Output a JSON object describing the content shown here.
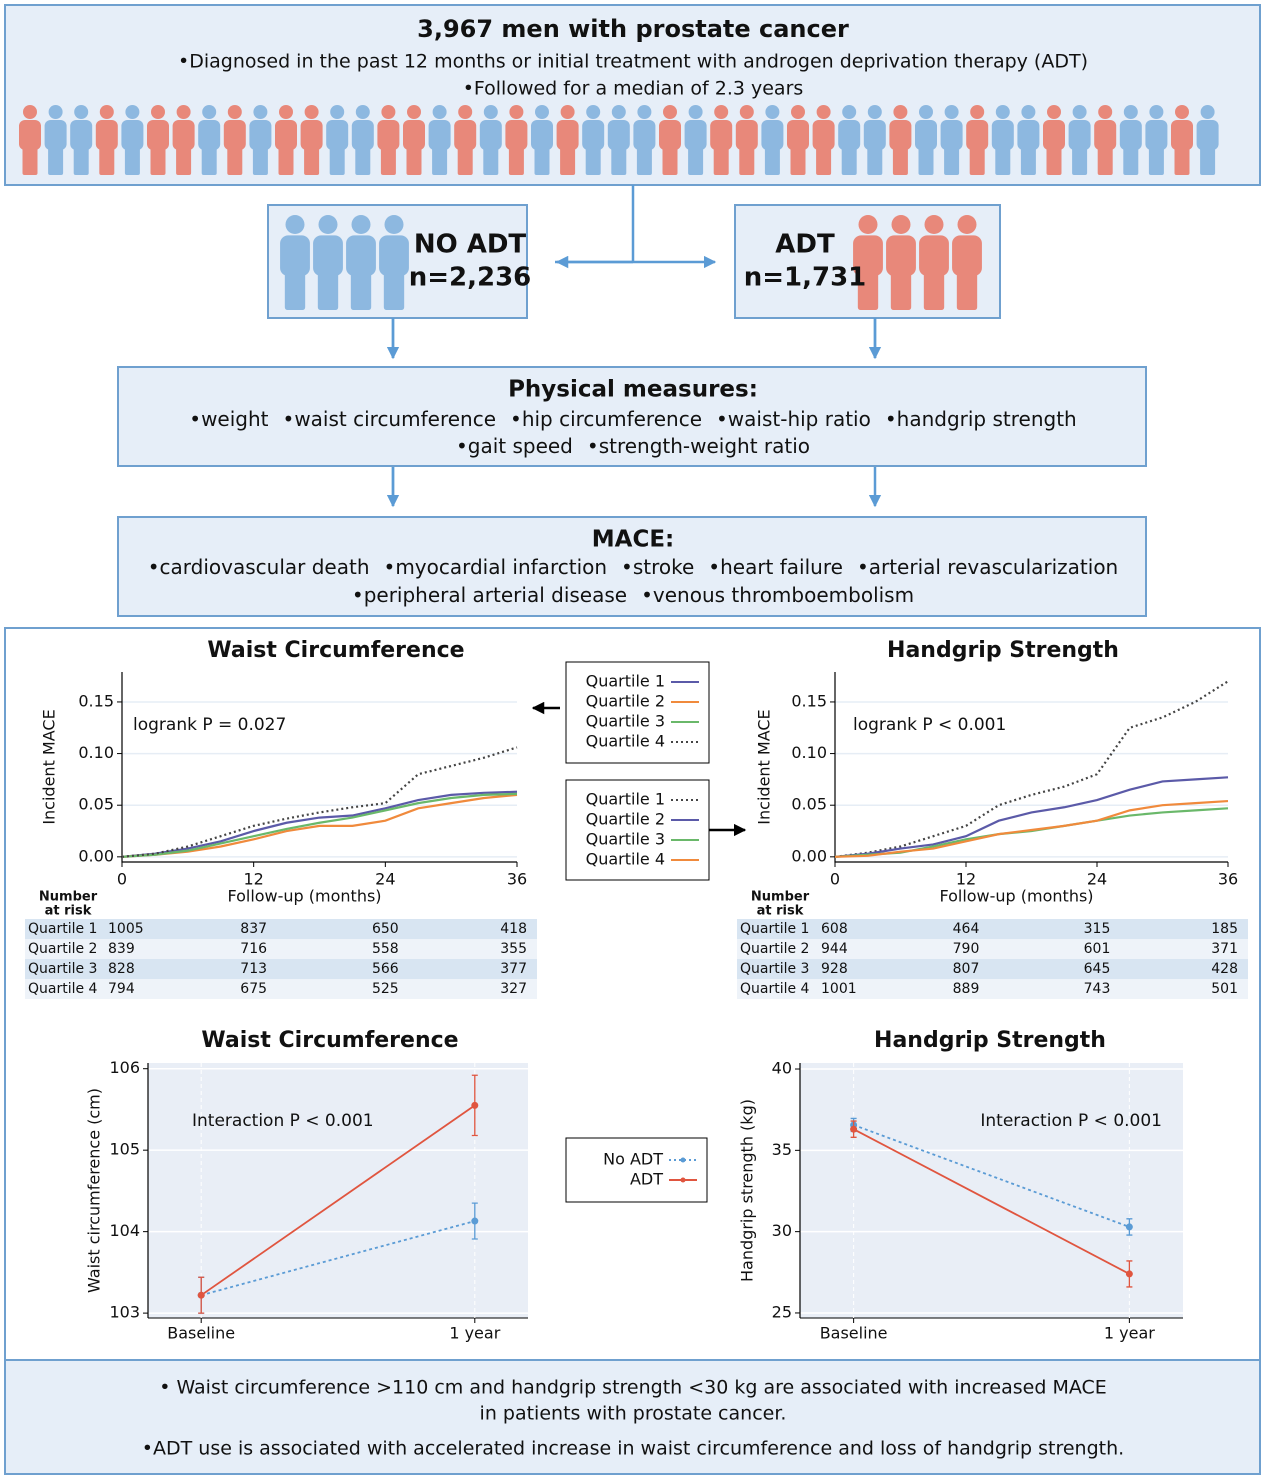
{
  "header": {
    "title": "3,967 men with prostate cancer",
    "bullets": [
      "•Diagnosed in the past 12 months or initial treatment with androgen deprivation therapy (ADT)",
      "•Followed for a median of 2.3  years"
    ]
  },
  "groups": [
    {
      "label": "NO ADT",
      "n": "n=2,236"
    },
    {
      "label": "ADT",
      "n": "n=1,731"
    }
  ],
  "physical": {
    "title": "Physical measures:",
    "lines": [
      [
        "•weight",
        "•waist circumference",
        "•hip circumference",
        "•waist-hip ratio",
        "•handgrip strength"
      ],
      [
        "•gait speed",
        "•strength-weight ratio"
      ]
    ]
  },
  "mace": {
    "title": "MACE:",
    "lines": [
      [
        "•cardiovascular death",
        "•myocardial infarction",
        "•stroke",
        "•heart failure",
        "•arterial revascularization"
      ],
      [
        "•peripheral arterial disease",
        "•venous thromboembolism"
      ]
    ]
  },
  "chart_data": [
    {
      "type": "line",
      "title": "Waist Circumference",
      "x_label": "Follow-up (months)",
      "y_label": "Incident MACE",
      "annotation": "logrank P = 0.027",
      "x": [
        0,
        3,
        6,
        9,
        12,
        15,
        18,
        21,
        24,
        27,
        30,
        33,
        36
      ],
      "series": [
        {
          "name": "Quartile 1",
          "color": "#5b5aa8",
          "values": [
            0,
            0.003,
            0.008,
            0.015,
            0.025,
            0.033,
            0.038,
            0.04,
            0.047,
            0.055,
            0.06,
            0.062,
            0.063
          ]
        },
        {
          "name": "Quartile 2",
          "color": "#f08a3c",
          "values": [
            0,
            0.002,
            0.005,
            0.01,
            0.017,
            0.025,
            0.03,
            0.03,
            0.035,
            0.047,
            0.052,
            0.057,
            0.06
          ]
        },
        {
          "name": "Quartile 3",
          "color": "#6ab86a",
          "values": [
            0,
            0.002,
            0.006,
            0.013,
            0.02,
            0.027,
            0.033,
            0.038,
            0.045,
            0.052,
            0.057,
            0.06,
            0.061
          ]
        },
        {
          "name": "Quartile 4",
          "color": "#444444",
          "dashed": true,
          "values": [
            0,
            0.003,
            0.01,
            0.02,
            0.03,
            0.037,
            0.043,
            0.048,
            0.052,
            0.08,
            0.088,
            0.096,
            0.106
          ]
        }
      ],
      "xlim": [
        0,
        36
      ],
      "xticks": [
        0,
        12,
        24,
        36
      ],
      "ylim": [
        -0.005,
        0.179
      ],
      "yticks": [
        {
          "value": 0,
          "label": "0.00"
        },
        {
          "value": 0.05,
          "label": "0.05"
        },
        {
          "value": 0.1,
          "label": "0.10"
        },
        {
          "value": 0.15,
          "label": "0.15"
        }
      ],
      "grid": true,
      "risk_table": {
        "title": [
          "Number",
          "at risk"
        ],
        "rows": [
          {
            "name": "Quartile 1",
            "values": [
              1005,
              837,
              650,
              418
            ]
          },
          {
            "name": "Quartile 2",
            "values": [
              839,
              716,
              558,
              355
            ]
          },
          {
            "name": "Quartile 3",
            "values": [
              828,
              713,
              566,
              377
            ]
          },
          {
            "name": "Quartile 4",
            "values": [
              794,
              675,
              525,
              327
            ]
          }
        ]
      }
    },
    {
      "type": "line",
      "title": "Handgrip Strength",
      "x_label": "Follow-up (months)",
      "y_label": "Incident MACE",
      "annotation": "logrank P < 0.001",
      "x": [
        0,
        3,
        6,
        9,
        12,
        15,
        18,
        21,
        24,
        27,
        30,
        33,
        36
      ],
      "series": [
        {
          "name": "Quartile 1",
          "color": "#444444",
          "dashed": true,
          "values": [
            0,
            0.004,
            0.01,
            0.02,
            0.03,
            0.05,
            0.06,
            0.068,
            0.08,
            0.125,
            0.135,
            0.15,
            0.17
          ]
        },
        {
          "name": "Quartile 2",
          "color": "#5b5aa8",
          "values": [
            0,
            0.003,
            0.008,
            0.012,
            0.02,
            0.035,
            0.043,
            0.048,
            0.055,
            0.065,
            0.073,
            0.075,
            0.077
          ]
        },
        {
          "name": "Quartile 3",
          "color": "#6ab86a",
          "values": [
            0,
            0.002,
            0.004,
            0.01,
            0.017,
            0.022,
            0.025,
            0.03,
            0.035,
            0.04,
            0.043,
            0.045,
            0.047
          ]
        },
        {
          "name": "Quartile 4",
          "color": "#f08a3c",
          "values": [
            0,
            0.001,
            0.005,
            0.008,
            0.015,
            0.022,
            0.026,
            0.03,
            0.035,
            0.045,
            0.05,
            0.052,
            0.054
          ]
        }
      ],
      "xlim": [
        0,
        36
      ],
      "xticks": [
        0,
        12,
        24,
        36
      ],
      "ylim": [
        -0.005,
        0.179
      ],
      "yticks": [
        {
          "value": 0,
          "label": "0.00"
        },
        {
          "value": 0.05,
          "label": "0.05"
        },
        {
          "value": 0.1,
          "label": "0.10"
        },
        {
          "value": 0.15,
          "label": "0.15"
        }
      ],
      "grid": true,
      "risk_table": {
        "title": [
          "Number",
          "at risk"
        ],
        "rows": [
          {
            "name": "Quartile 1",
            "values": [
              608,
              464,
              315,
              185
            ]
          },
          {
            "name": "Quartile 2",
            "values": [
              944,
              790,
              601,
              371
            ]
          },
          {
            "name": "Quartile 3",
            "values": [
              928,
              807,
              645,
              428
            ]
          },
          {
            "name": "Quartile 4",
            "values": [
              1001,
              889,
              743,
              501
            ]
          }
        ]
      }
    },
    {
      "type": "line",
      "title": "Waist Circumference",
      "y_label": "Waist circumference (cm)",
      "annotation": "Interaction P < 0.001",
      "categories": [
        "Baseline",
        "1 year"
      ],
      "series": [
        {
          "name": "No ADT",
          "color": "#5a9bd5",
          "dashed": true,
          "values": [
            103.22,
            104.13
          ],
          "errors": [
            0.22,
            0.22
          ]
        },
        {
          "name": "ADT",
          "color": "#e0553f",
          "values": [
            103.22,
            105.55
          ],
          "errors": [
            0.22,
            0.37
          ]
        }
      ],
      "ylim": [
        102.94,
        106.07
      ],
      "yticks": [
        103,
        104,
        105,
        106
      ],
      "grid": true,
      "legend": true
    },
    {
      "type": "line",
      "title": "Handgrip Strength",
      "y_label": "Handgrip strength (kg)",
      "annotation": "Interaction P < 0.001",
      "categories": [
        "Baseline",
        "1 year"
      ],
      "series": [
        {
          "color": "#5a9bd5",
          "dashed": true,
          "values": [
            36.56,
            30.29
          ],
          "errors": [
            0.4,
            0.5
          ]
        },
        {
          "color": "#e0553f",
          "values": [
            36.3,
            27.4
          ],
          "errors": [
            0.5,
            0.8
          ]
        }
      ],
      "ylim": [
        24.69,
        40.37
      ],
      "yticks": [
        25,
        30,
        35,
        40
      ],
      "grid": true
    }
  ],
  "footer": {
    "lines": [
      "• Waist circumference >110 cm and handgrip strength <30 kg are associated with increased MACE",
      "in patients with prostate cancer.",
      "•ADT use is associated with accelerated increase in waist circumference and loss of handgrip strength."
    ]
  }
}
